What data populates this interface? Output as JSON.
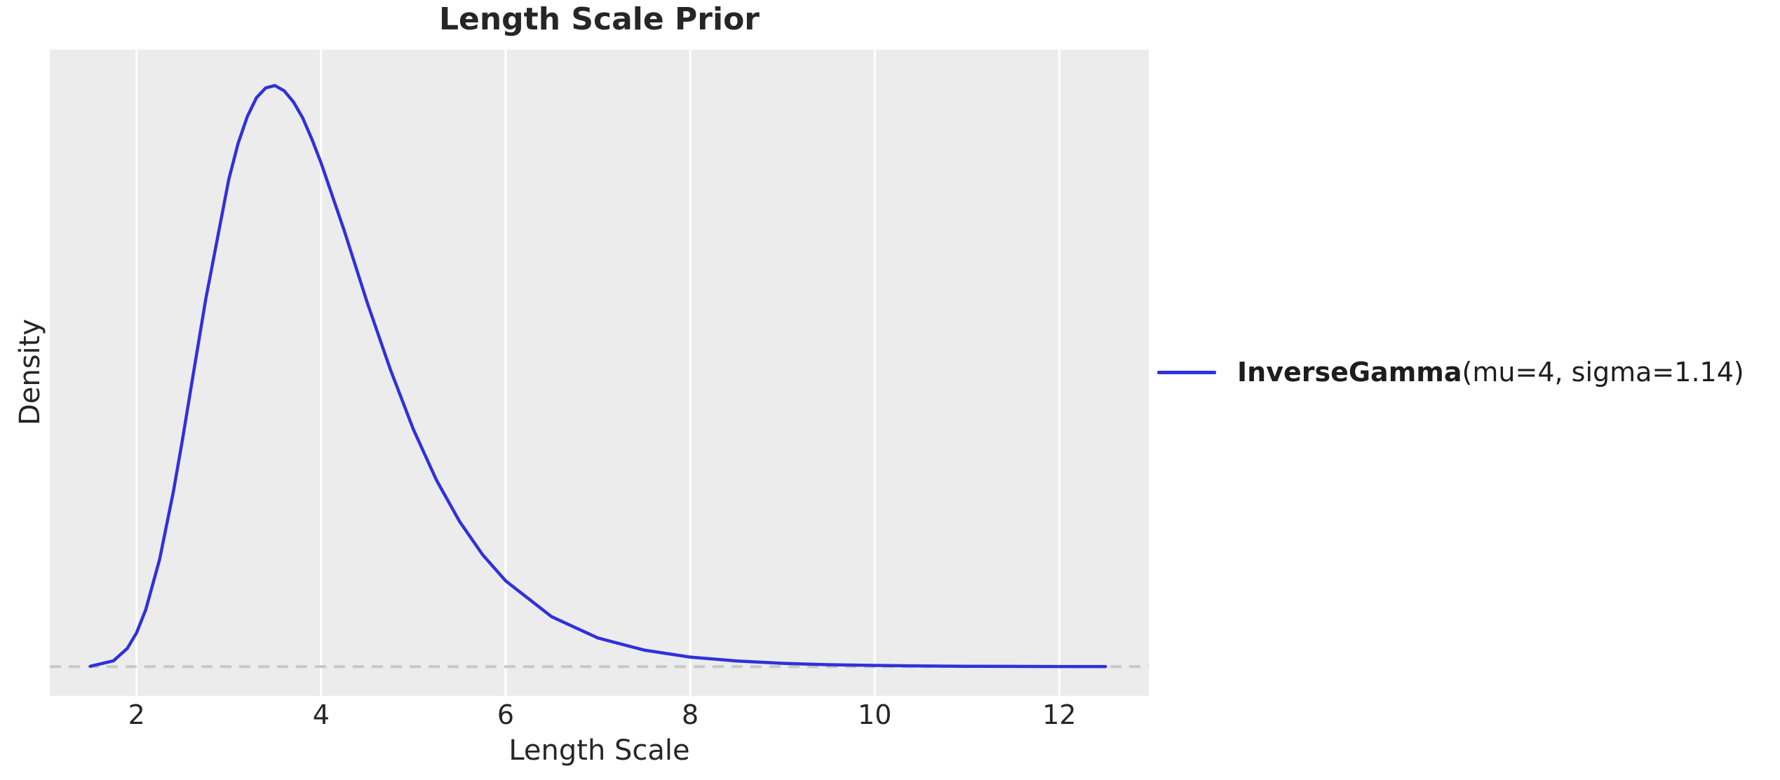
{
  "chart_data": {
    "type": "line",
    "title": "Length Scale Prior",
    "xlabel": "Length Scale",
    "ylabel": "Density",
    "x_ticks": [
      2,
      4,
      6,
      8,
      10,
      12
    ],
    "x_tick_labels": [
      "2",
      "4",
      "6",
      "8",
      "10",
      "12"
    ],
    "y_ticks": [],
    "xlim": [
      1.06,
      12.97
    ],
    "ylim": [
      -0.021,
      0.443
    ],
    "grid": "vertical gridlines only, white on light-gray axes background",
    "legend_position": "outside right, vertically centered",
    "baseline": {
      "y": 0,
      "style": "dashed",
      "color": "#c8c8c8"
    },
    "series": [
      {
        "name": "InverseGamma",
        "params": "(mu=4, sigma=1.14)",
        "label": "InverseGamma(mu=4, sigma=1.14)",
        "color": "#3130db",
        "x": [
          1.5,
          1.75,
          1.9,
          2.0,
          2.1,
          2.25,
          2.4,
          2.5,
          2.6,
          2.75,
          3.0,
          3.1,
          3.2,
          3.3,
          3.4,
          3.5,
          3.6,
          3.7,
          3.8,
          3.9,
          4.0,
          4.25,
          4.5,
          4.75,
          5.0,
          5.25,
          5.5,
          5.75,
          6.0,
          6.5,
          7.0,
          7.5,
          8.0,
          8.5,
          9.0,
          9.5,
          10.0,
          10.5,
          11.0,
          11.5,
          12.0,
          12.5
        ],
        "density": [
          0.0003,
          0.0042,
          0.0131,
          0.0243,
          0.0409,
          0.0771,
          0.1259,
          0.164,
          0.2041,
          0.264,
          0.3499,
          0.3756,
          0.395,
          0.4086,
          0.4156,
          0.4173,
          0.4135,
          0.4056,
          0.3942,
          0.3788,
          0.3617,
          0.3133,
          0.2615,
          0.2135,
          0.1704,
          0.134,
          0.1043,
          0.0804,
          0.0616,
          0.0358,
          0.0206,
          0.0119,
          0.0069,
          0.0041,
          0.0024,
          0.0014,
          0.0009,
          0.0005,
          0.0003,
          0.0002,
          0.0001,
          0.0001
        ]
      }
    ]
  },
  "colors": {
    "plot_background": "#ececec",
    "gridline": "#ffffff",
    "curve": "#3130db",
    "baseline_dash": "#c8c8c8",
    "text": "#262626",
    "page_background": "#ffffff"
  }
}
